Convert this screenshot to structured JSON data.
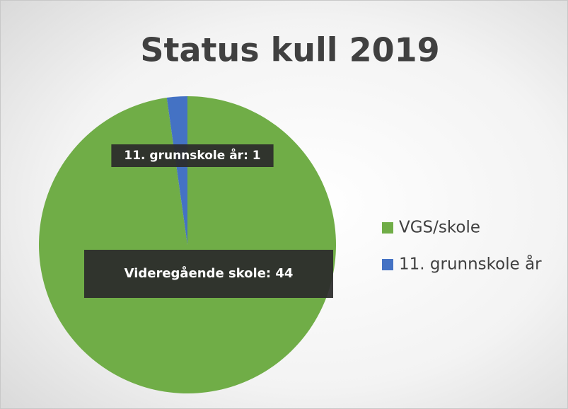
{
  "chart_data": {
    "type": "pie",
    "title": "Status kull 2019",
    "categories": [
      "VGS/skole",
      "11. grunnskole år"
    ],
    "values": [
      44,
      1
    ],
    "value_labels": [
      "Videregående skole: 44",
      "11. grunnskole år: 1"
    ],
    "colors": [
      "#70ad47",
      "#4472c4"
    ],
    "legend": "right"
  }
}
